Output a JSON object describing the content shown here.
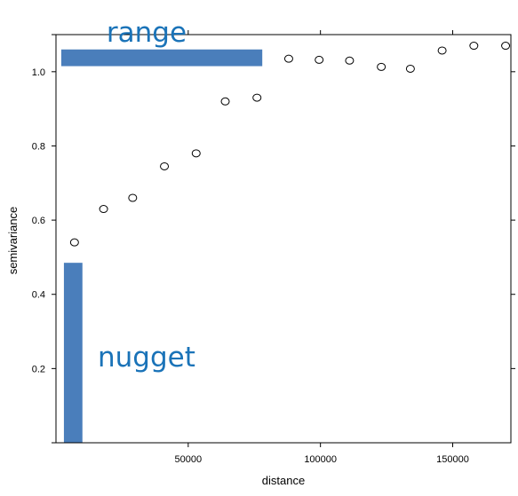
{
  "chart_data": {
    "type": "scatter",
    "title": "",
    "xlabel": "distance",
    "ylabel": "semivariance",
    "xlim": [
      0,
      172000
    ],
    "ylim": [
      0,
      1.1
    ],
    "x_ticks": [
      50000,
      100000,
      150000
    ],
    "x_tick_labels": [
      "50000",
      "100000",
      "150000"
    ],
    "y_ticks": [
      0.2,
      0.4,
      0.6,
      0.8,
      1.0
    ],
    "y_tick_labels": [
      "0.2",
      "0.4",
      "0.6",
      "0.8",
      "1.0"
    ],
    "grid": false,
    "marker": "open-circle",
    "points": [
      {
        "x": 7000,
        "y": 0.54
      },
      {
        "x": 18000,
        "y": 0.63
      },
      {
        "x": 29000,
        "y": 0.66
      },
      {
        "x": 41000,
        "y": 0.745
      },
      {
        "x": 53000,
        "y": 0.78
      },
      {
        "x": 64000,
        "y": 0.92
      },
      {
        "x": 76000,
        "y": 0.93
      },
      {
        "x": 88000,
        "y": 1.035
      },
      {
        "x": 99500,
        "y": 1.032
      },
      {
        "x": 111000,
        "y": 1.03
      },
      {
        "x": 123000,
        "y": 1.013
      },
      {
        "x": 134000,
        "y": 1.008
      },
      {
        "x": 146000,
        "y": 1.057
      },
      {
        "x": 158000,
        "y": 1.07
      },
      {
        "x": 170000,
        "y": 1.07
      }
    ],
    "annotations": {
      "range": {
        "label": "range",
        "x_from": 2000,
        "x_to": 78000,
        "y_from": 1.015,
        "y_to": 1.06
      },
      "nugget": {
        "label": "nugget",
        "x_from": 3000,
        "x_to": 10000,
        "y_from": 0,
        "y_to": 0.485
      }
    },
    "colors": {
      "annotation": "#4a7ebb",
      "annotation_text": "#1a73b8",
      "axis": "#000000"
    }
  }
}
